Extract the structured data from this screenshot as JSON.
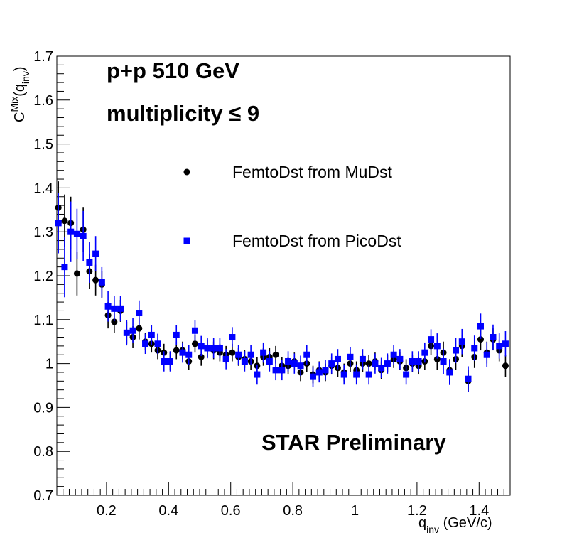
{
  "chart_data": {
    "type": "scatter",
    "title_lines": [
      "p+p 510 GeV",
      "multiplicity  ≤ 9"
    ],
    "annotation": "STAR Preliminary",
    "ylabel": {
      "main": "C",
      "sup": "Mix",
      "arg_open": "(q",
      "arg_sub": "inv",
      "arg_close": ")"
    },
    "xlabel": {
      "main": "q",
      "sub": "inv",
      "unit": " (GeV/c)"
    },
    "xlim": [
      0.04,
      1.5
    ],
    "ylim": [
      0.7,
      1.7
    ],
    "x_ticks": [
      0.2,
      0.4,
      0.6,
      0.8,
      1.0,
      1.2,
      1.4
    ],
    "x_tick_labels": [
      "0.2",
      "0.4",
      "0.6",
      "0.8",
      "1",
      "1.2",
      "1.4"
    ],
    "y_ticks": [
      0.7,
      0.8,
      0.9,
      1.0,
      1.1,
      1.2,
      1.3,
      1.4,
      1.5,
      1.6,
      1.7
    ],
    "y_tick_labels": [
      "0.7",
      "0.8",
      "0.9",
      "1",
      "1.1",
      "1.2",
      "1.3",
      "1.4",
      "1.5",
      "1.6",
      "1.7"
    ],
    "grid": false,
    "legend_position": "upper-center",
    "series": [
      {
        "name": "FemtoDst from MuDst",
        "marker": "circle",
        "color": "#000000",
        "x": [
          0.045,
          0.065,
          0.085,
          0.105,
          0.125,
          0.145,
          0.165,
          0.185,
          0.205,
          0.225,
          0.245,
          0.265,
          0.285,
          0.305,
          0.325,
          0.345,
          0.365,
          0.385,
          0.405,
          0.425,
          0.445,
          0.465,
          0.485,
          0.505,
          0.525,
          0.545,
          0.565,
          0.585,
          0.605,
          0.625,
          0.645,
          0.665,
          0.685,
          0.705,
          0.725,
          0.745,
          0.765,
          0.785,
          0.805,
          0.825,
          0.845,
          0.865,
          0.885,
          0.905,
          0.925,
          0.945,
          0.965,
          0.985,
          1.005,
          1.025,
          1.045,
          1.065,
          1.085,
          1.105,
          1.125,
          1.145,
          1.165,
          1.185,
          1.205,
          1.225,
          1.245,
          1.265,
          1.285,
          1.305,
          1.325,
          1.345,
          1.365,
          1.385,
          1.405,
          1.425,
          1.445,
          1.465,
          1.485
        ],
        "y": [
          1.355,
          1.325,
          1.32,
          1.205,
          1.305,
          1.21,
          1.19,
          1.18,
          1.11,
          1.095,
          1.12,
          1.07,
          1.06,
          1.08,
          1.05,
          1.045,
          1.03,
          1.025,
          1.005,
          1.03,
          1.03,
          1.005,
          1.045,
          1.015,
          1.035,
          1.03,
          1.025,
          1.02,
          1.025,
          1.015,
          1.01,
          1.005,
          0.995,
          1.015,
          1.015,
          1.02,
          0.995,
          0.995,
          1.005,
          0.98,
          1.0,
          0.975,
          0.985,
          0.98,
          0.995,
          0.99,
          0.98,
          1.0,
          0.985,
          1.0,
          1.0,
          1.005,
          0.985,
          1.0,
          1.01,
          1.005,
          0.99,
          1.0,
          0.995,
          1.005,
          1.04,
          1.01,
          1.025,
          0.985,
          1.01,
          1.04,
          0.96,
          1.015,
          1.055,
          1.025,
          1.055,
          1.03,
          0.995
        ],
        "err": [
          0.06,
          0.06,
          0.06,
          0.05,
          0.05,
          0.04,
          0.035,
          0.03,
          0.03,
          0.025,
          0.025,
          0.025,
          0.025,
          0.025,
          0.02,
          0.02,
          0.02,
          0.02,
          0.02,
          0.02,
          0.02,
          0.02,
          0.02,
          0.02,
          0.02,
          0.02,
          0.02,
          0.02,
          0.02,
          0.02,
          0.02,
          0.02,
          0.02,
          0.02,
          0.02,
          0.02,
          0.02,
          0.02,
          0.02,
          0.02,
          0.02,
          0.02,
          0.02,
          0.02,
          0.02,
          0.02,
          0.02,
          0.02,
          0.02,
          0.02,
          0.02,
          0.02,
          0.02,
          0.02,
          0.02,
          0.02,
          0.02,
          0.02,
          0.02,
          0.02,
          0.02,
          0.025,
          0.025,
          0.025,
          0.025,
          0.025,
          0.025,
          0.025,
          0.025,
          0.025,
          0.025,
          0.025,
          0.025
        ]
      },
      {
        "name": "FemtoDst from PicoDst",
        "marker": "square",
        "color": "#0000ff",
        "x": [
          0.045,
          0.065,
          0.085,
          0.105,
          0.125,
          0.145,
          0.165,
          0.185,
          0.205,
          0.225,
          0.245,
          0.265,
          0.285,
          0.305,
          0.325,
          0.345,
          0.365,
          0.385,
          0.405,
          0.425,
          0.445,
          0.465,
          0.485,
          0.505,
          0.525,
          0.545,
          0.565,
          0.585,
          0.605,
          0.625,
          0.645,
          0.665,
          0.685,
          0.705,
          0.725,
          0.745,
          0.765,
          0.785,
          0.805,
          0.825,
          0.845,
          0.865,
          0.885,
          0.905,
          0.925,
          0.945,
          0.965,
          0.985,
          1.005,
          1.025,
          1.045,
          1.065,
          1.085,
          1.105,
          1.125,
          1.145,
          1.165,
          1.185,
          1.205,
          1.225,
          1.245,
          1.265,
          1.285,
          1.305,
          1.325,
          1.345,
          1.365,
          1.385,
          1.405,
          1.425,
          1.445,
          1.465,
          1.485
        ],
        "y": [
          1.32,
          1.22,
          1.3,
          1.295,
          1.29,
          1.23,
          1.25,
          1.185,
          1.13,
          1.125,
          1.125,
          1.07,
          1.075,
          1.115,
          1.045,
          1.065,
          1.045,
          1.005,
          1.005,
          1.065,
          1.025,
          1.02,
          1.075,
          1.04,
          1.035,
          1.035,
          1.035,
          1.01,
          1.06,
          1.02,
          1.005,
          1.02,
          0.975,
          1.025,
          1.005,
          0.985,
          0.985,
          1.005,
          1.0,
          0.995,
          1.02,
          0.97,
          0.98,
          0.985,
          1.0,
          1.01,
          0.975,
          1.015,
          0.975,
          1.01,
          0.975,
          1.0,
          0.99,
          1.0,
          1.02,
          1.01,
          0.975,
          1.005,
          1.005,
          1.025,
          1.055,
          1.04,
          1.005,
          0.98,
          1.03,
          1.05,
          0.965,
          1.035,
          1.085,
          1.02,
          1.06,
          1.04,
          1.045
        ]
      }
    ]
  },
  "legend": [
    {
      "label": "FemtoDst from MuDst"
    },
    {
      "label": "FemtoDst from PicoDst"
    }
  ]
}
